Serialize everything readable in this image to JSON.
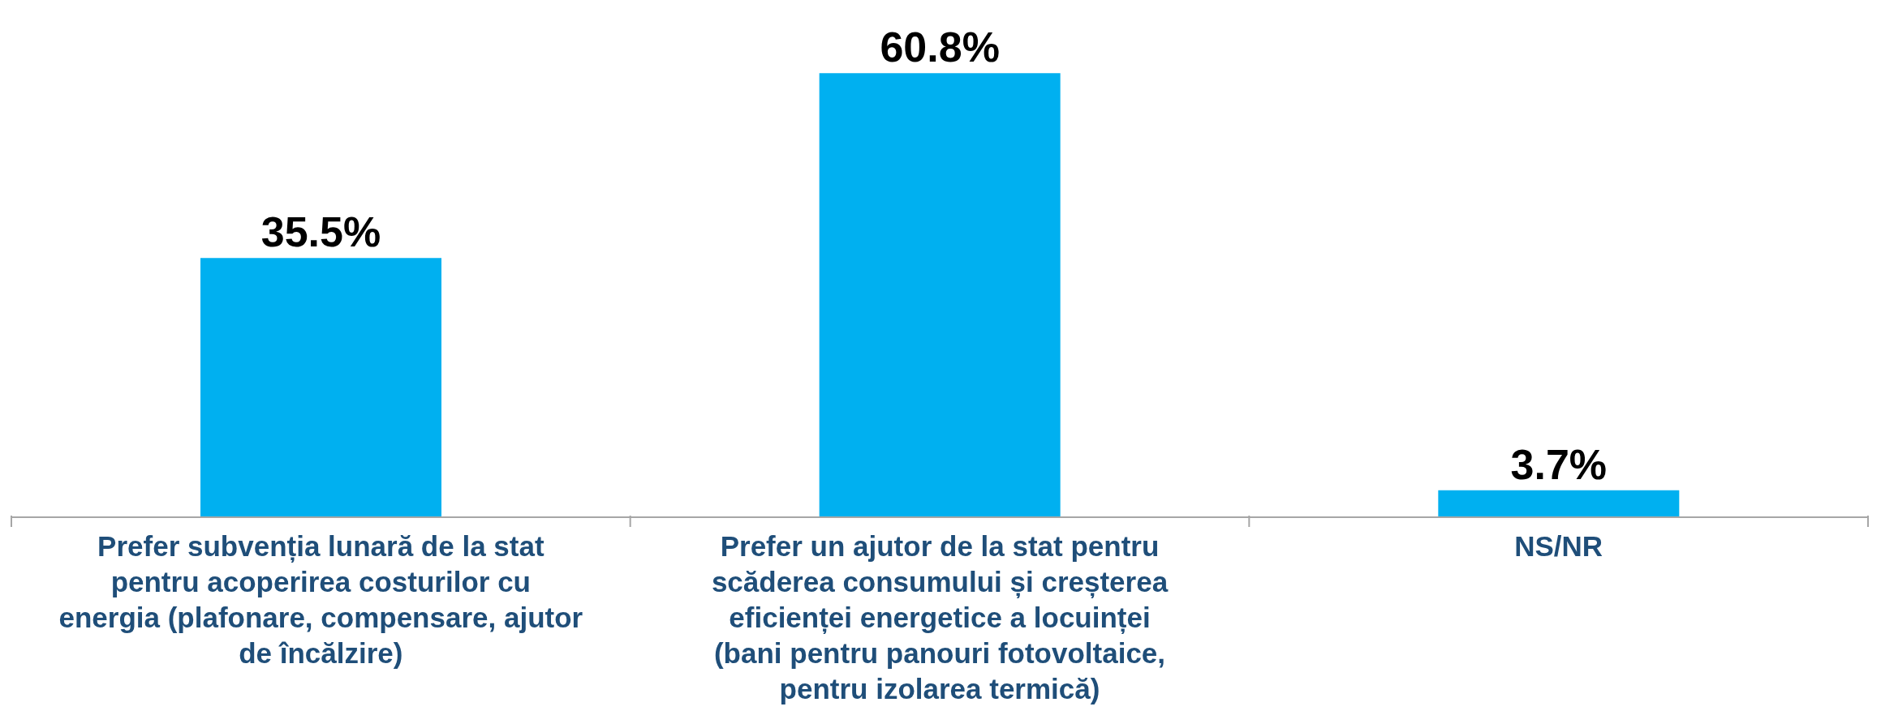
{
  "chart_data": {
    "type": "bar",
    "categories": [
      "Prefer subvenția lunară de la stat pentru acoperirea costurilor cu energia (plafonare, compensare, ajutor de încălzire)",
      "Prefer un ajutor de la stat pentru scăderea consumului și creșterea eficienței energetice a locuinței (bani pentru panouri fotovoltaice, pentru izolarea termică)",
      "NS/NR"
    ],
    "values": [
      35.5,
      60.8,
      3.7
    ],
    "value_labels": [
      "35.5%",
      "60.8%",
      "3.7%"
    ],
    "color": "#00b0f0"
  }
}
